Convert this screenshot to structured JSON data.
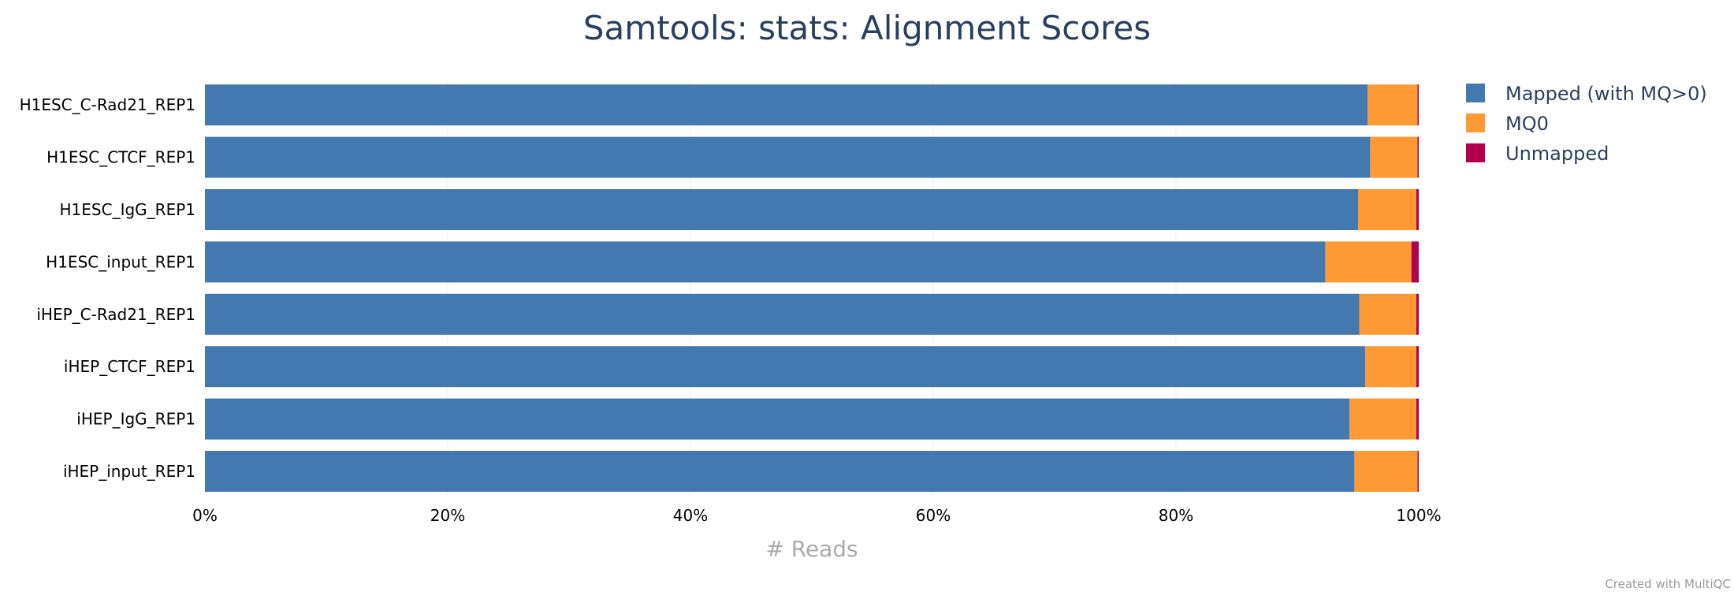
{
  "chart_data": {
    "type": "bar",
    "orientation": "horizontal",
    "stacked": true,
    "normalized_percent": true,
    "title": "Samtools: stats: Alignment Scores",
    "xlabel": "# Reads",
    "ylabel": "",
    "xlim": [
      0,
      100
    ],
    "x_ticks": [
      "0%",
      "20%",
      "40%",
      "60%",
      "80%",
      "100%"
    ],
    "grid": true,
    "legend_position": "top-right",
    "categories": [
      "H1ESC_C-Rad21_REP1",
      "H1ESC_CTCF_REP1",
      "H1ESC_IgG_REP1",
      "H1ESC_input_REP1",
      "iHEP_C-Rad21_REP1",
      "iHEP_CTCF_REP1",
      "iHEP_IgG_REP1",
      "iHEP_input_REP1"
    ],
    "series": [
      {
        "name": "Mapped (with MQ>0)",
        "color": "#4479b0",
        "values": [
          95.8,
          96.0,
          95.0,
          92.3,
          95.1,
          95.6,
          94.3,
          94.7
        ]
      },
      {
        "name": "MQ0",
        "color": "#ff9933",
        "values": [
          4.1,
          3.9,
          4.8,
          7.1,
          4.7,
          4.2,
          5.5,
          5.2
        ]
      },
      {
        "name": "Unmapped",
        "color": "#b3004d",
        "values": [
          0.1,
          0.1,
          0.2,
          0.6,
          0.2,
          0.2,
          0.2,
          0.1
        ]
      }
    ]
  },
  "credit": "Created with MultiQC"
}
